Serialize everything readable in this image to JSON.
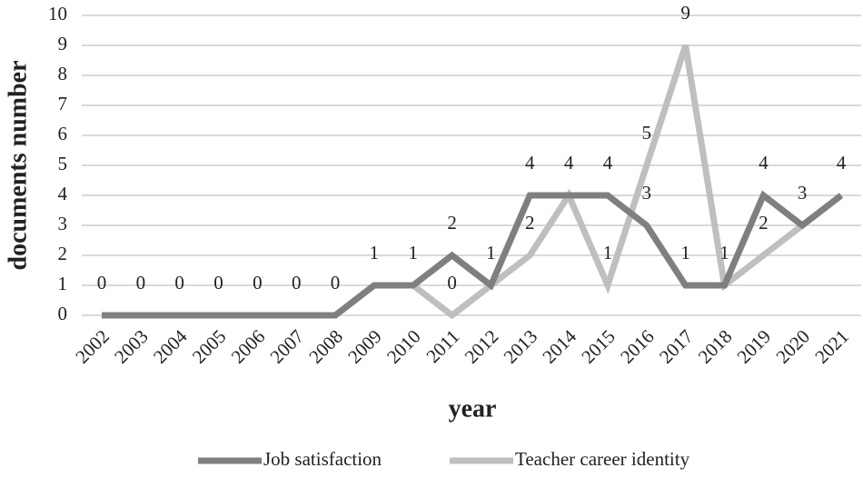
{
  "chart_data": {
    "type": "line",
    "x_label": "year",
    "y_label": "documents number",
    "categories": [
      "2002",
      "2003",
      "2004",
      "2005",
      "2006",
      "2007",
      "2008",
      "2009",
      "2010",
      "2011",
      "2012",
      "2013",
      "2014",
      "2015",
      "2016",
      "2017",
      "2018",
      "2019",
      "2020",
      "2021"
    ],
    "series": [
      {
        "name": "Job satisfaction",
        "color": "#7f7f7f",
        "values": [
          0,
          0,
          0,
          0,
          0,
          0,
          0,
          1,
          1,
          2,
          1,
          4,
          4,
          4,
          3,
          1,
          1,
          4,
          3,
          4
        ]
      },
      {
        "name": "Teacher career identity",
        "color": "#bfbfbf",
        "values": [
          0,
          0,
          0,
          0,
          0,
          0,
          0,
          1,
          1,
          0,
          1,
          2,
          4,
          1,
          5,
          9,
          1,
          2,
          3,
          4
        ]
      }
    ],
    "ylim": [
      0,
      10
    ],
    "yticks": [
      0,
      1,
      2,
      3,
      4,
      5,
      6,
      7,
      8,
      9,
      10
    ],
    "grid": true,
    "legend": "bottom"
  }
}
